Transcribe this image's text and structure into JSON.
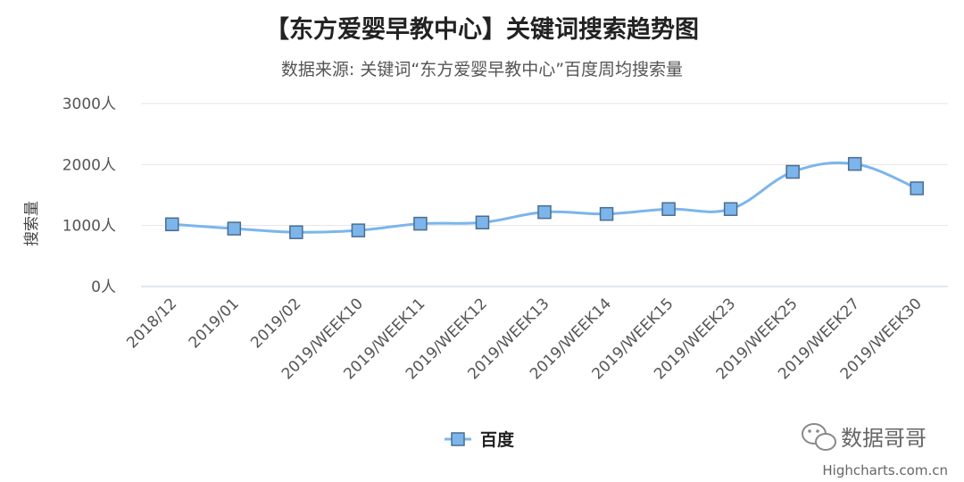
{
  "chart_data": {
    "type": "line",
    "title": "【东方爱婴早教中心】关键词搜索趋势图",
    "subtitle": "数据来源: 关键词“东方爱婴早教中心”百度周均搜索量",
    "ylabel": "搜索量",
    "y_unit": "人",
    "ylim": [
      0,
      3000
    ],
    "yticks": [
      0,
      1000,
      2000,
      3000
    ],
    "grid": true,
    "categories": [
      "2018/12",
      "2019/01",
      "2019/02",
      "2019/WEEK10",
      "2019/WEEK11",
      "2019/WEEK12",
      "2019/WEEK13",
      "2019/WEEK14",
      "2019/WEEK15",
      "2019/WEEK23",
      "2019/WEEK25",
      "2019/WEEK27",
      "2019/WEEK30"
    ],
    "series": [
      {
        "name": "百度",
        "color": "#7cb5ec",
        "marker": "square",
        "values": [
          1020,
          950,
          890,
          920,
          1030,
          1050,
          1220,
          1190,
          1270,
          1270,
          1880,
          2010,
          1610
        ]
      }
    ],
    "legend_position": "bottom-center"
  },
  "watermark": {
    "text": "数据哥哥",
    "icon": "wechat-icon"
  },
  "credit": "Highcharts.com.cn"
}
